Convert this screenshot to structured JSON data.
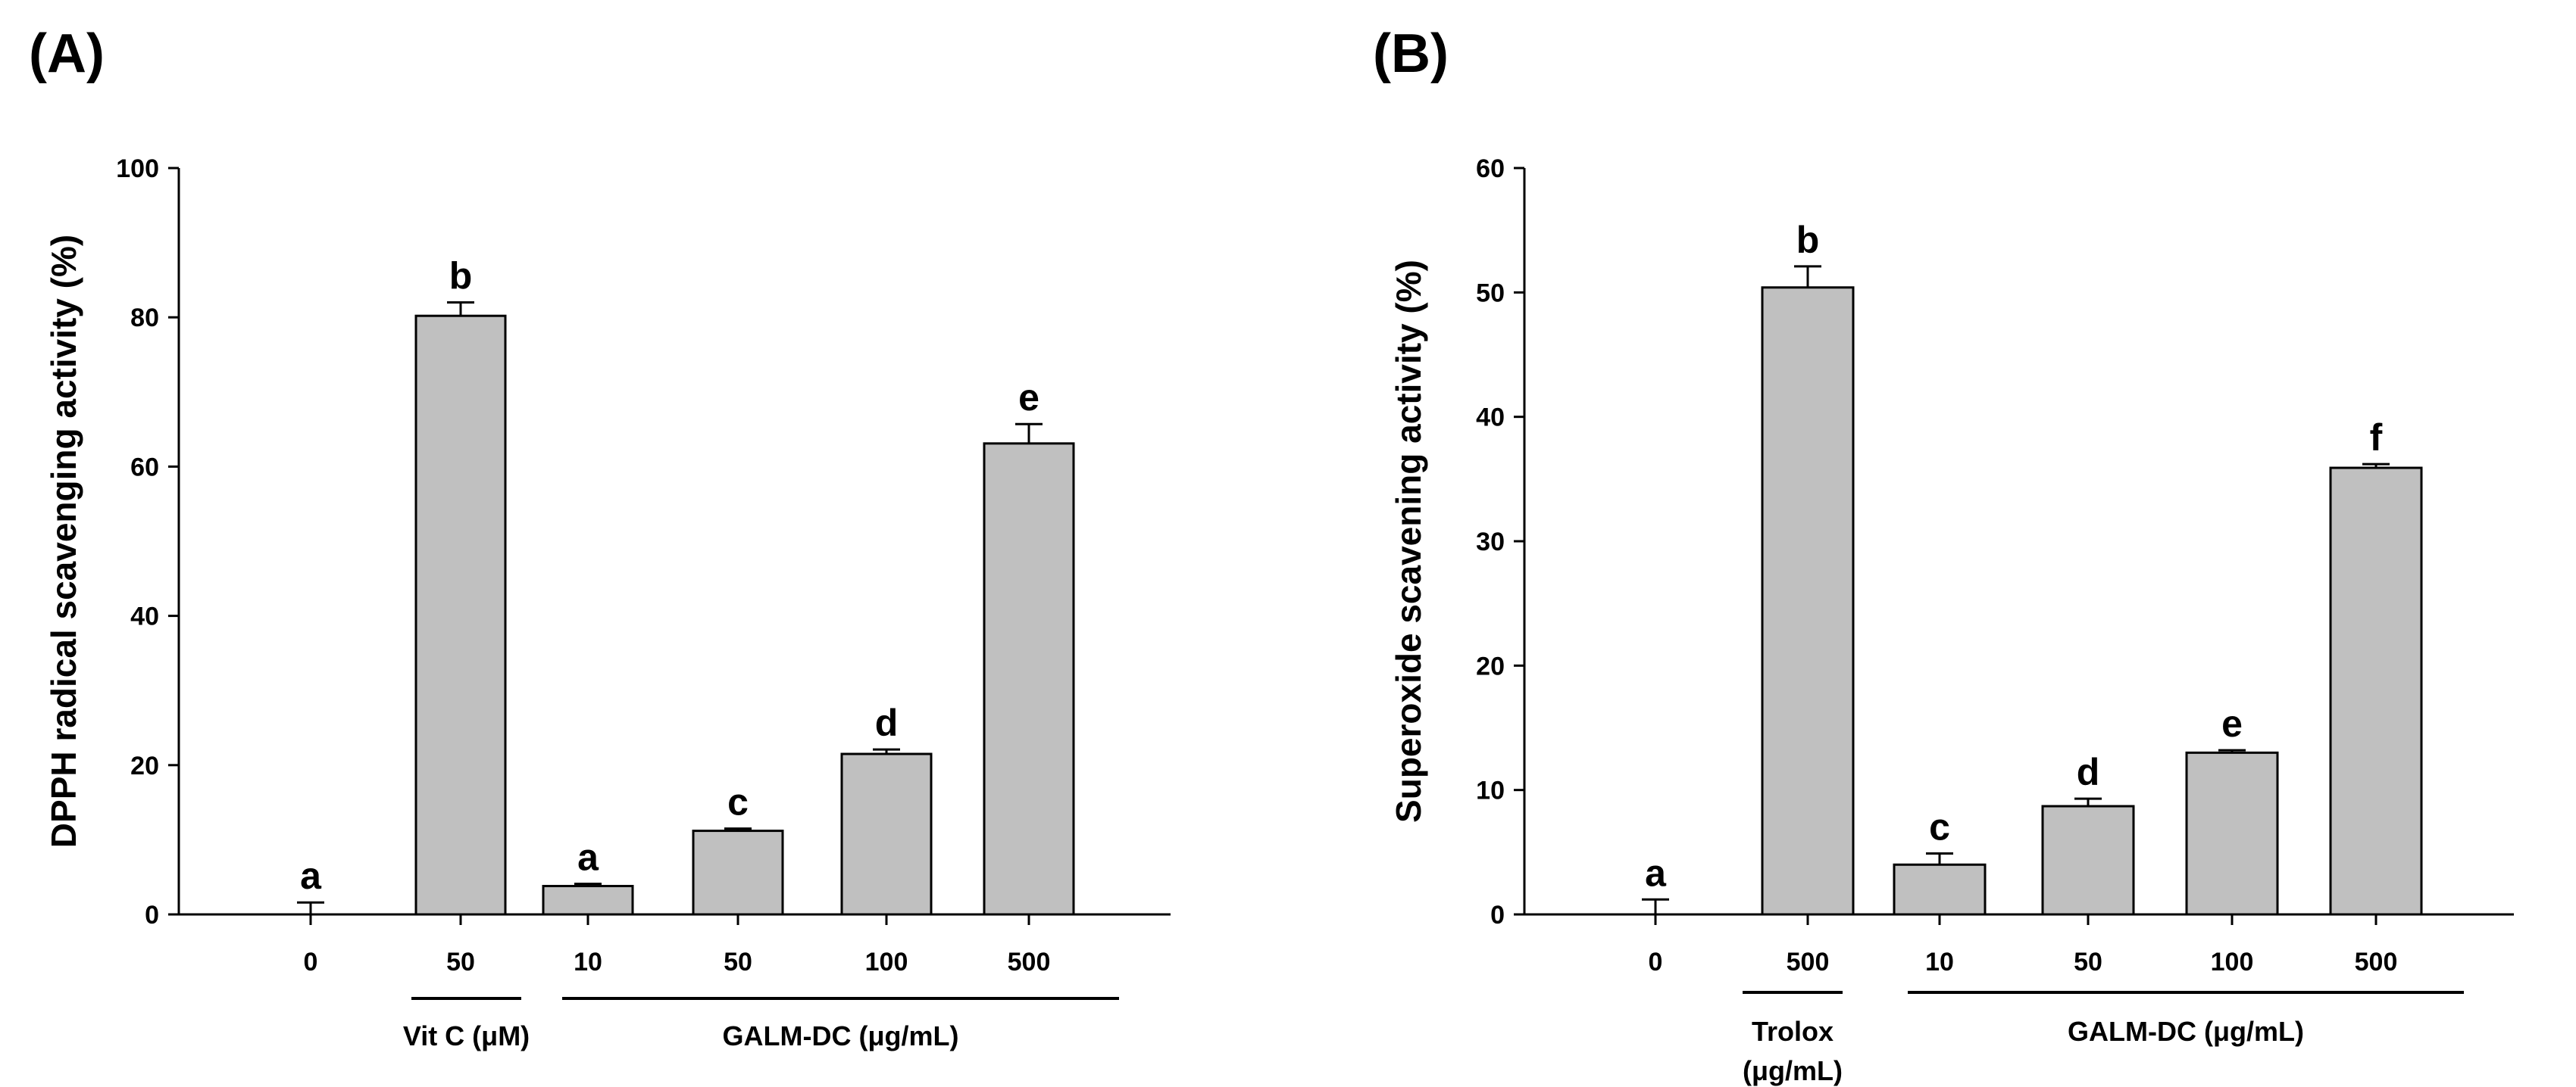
{
  "chart_data": [
    {
      "panel": "(A)",
      "type": "bar",
      "ylabel": "DPPH radical scavenging activity  (%)",
      "ylim": [
        0,
        100
      ],
      "yticks": [
        0,
        20,
        40,
        60,
        80,
        100
      ],
      "categories": [
        "0",
        "50",
        "10",
        "50",
        "100",
        "500"
      ],
      "values": [
        0,
        80.2,
        3.8,
        11.2,
        21.5,
        63.1
      ],
      "errors": [
        1.6,
        1.8,
        0.3,
        0.3,
        0.6,
        2.6
      ],
      "letters": [
        "a",
        "b",
        "a",
        "c",
        "d",
        "e"
      ],
      "groups": [
        {
          "label": "Vit C (μM)",
          "from": 1,
          "to": 1
        },
        {
          "label": "GALM-DC (μg/mL)",
          "from": 2,
          "to": 5
        }
      ],
      "bar_color": "#c0c0c0"
    },
    {
      "panel": "(B)",
      "type": "bar",
      "ylabel": "Superoxide scavening activity (%)",
      "ylim": [
        0,
        60
      ],
      "yticks": [
        0,
        10,
        20,
        30,
        40,
        50,
        60
      ],
      "categories": [
        "0",
        "500",
        "10",
        "50",
        "100",
        "500"
      ],
      "values": [
        0,
        50.4,
        4.0,
        8.7,
        13.0,
        35.9
      ],
      "errors": [
        1.2,
        1.7,
        0.9,
        0.6,
        0.2,
        0.3
      ],
      "letters": [
        "a",
        "b",
        "c",
        "d",
        "e",
        "f"
      ],
      "groups": [
        {
          "label": "Trolox",
          "sublabel": "(μg/mL)",
          "from": 1,
          "to": 1
        },
        {
          "label": "GALM-DC (μg/mL)",
          "from": 2,
          "to": 5
        }
      ],
      "bar_color": "#c0c0c0"
    }
  ]
}
